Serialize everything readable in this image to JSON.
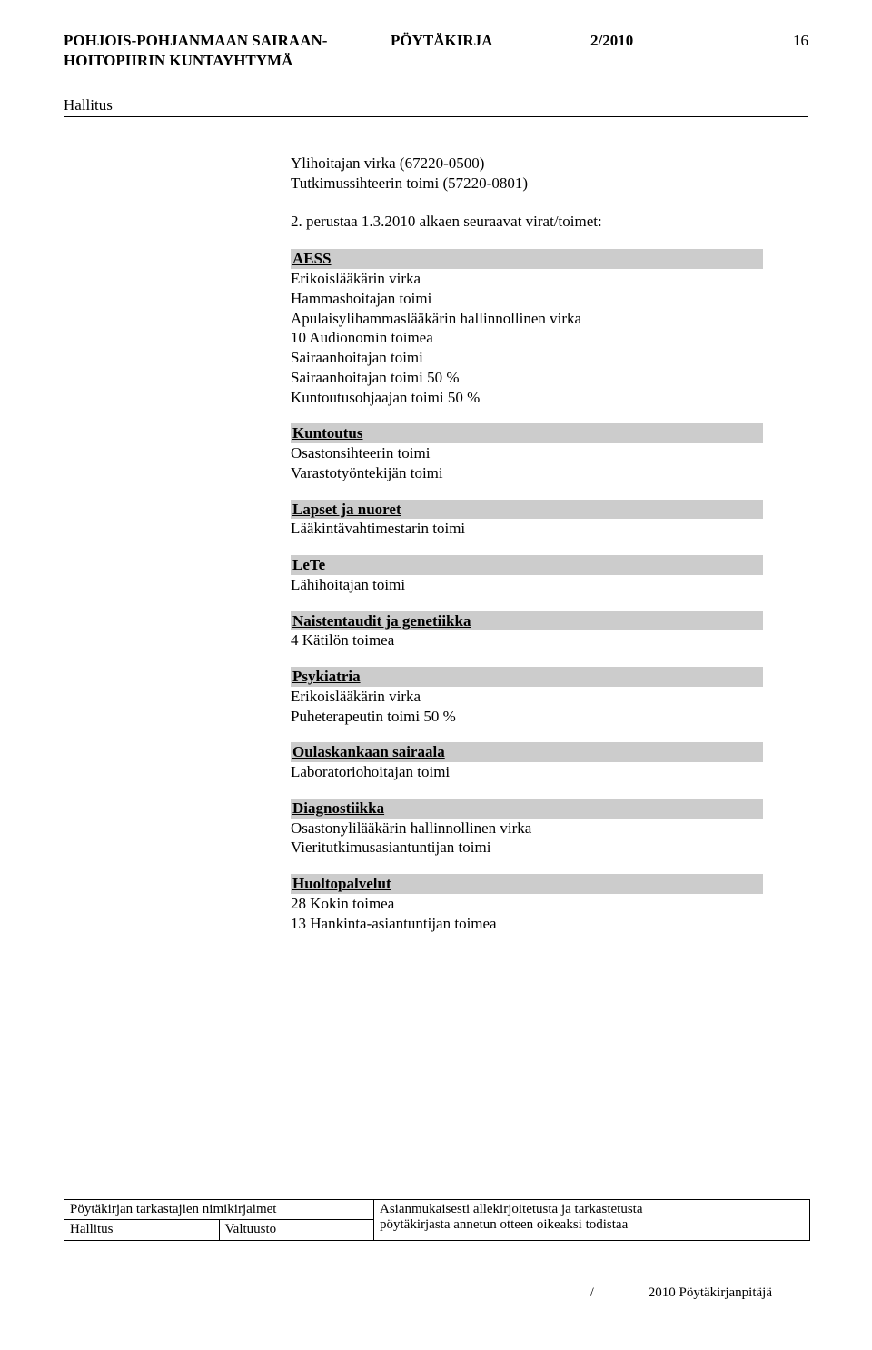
{
  "header": {
    "org_line1": "POHJOIS-POHJANMAAN SAIRAAN-",
    "org_line2": "HOITOPIIRIN KUNTAYHTYMÄ",
    "doc_type": "PÖYTÄKIRJA",
    "doc_number": "2/2010",
    "page_number": "16",
    "board": "Hallitus"
  },
  "intro": {
    "line1": "Ylihoitajan virka (67220-0500)",
    "line2": "Tutkimussihteerin toimi (57220-0801)",
    "perustaa": "2. perustaa 1.3.2010 alkaen seuraavat virat/toimet:"
  },
  "sections": [
    {
      "title": "AESS",
      "items": [
        "Erikoislääkärin virka",
        "Hammashoitajan toimi",
        "Apulaisylihammaslääkärin hallinnollinen virka",
        "10 Audionomin toimea",
        "Sairaanhoitajan toimi",
        "Sairaanhoitajan toimi 50 %",
        "Kuntoutusohjaajan toimi 50 %"
      ]
    },
    {
      "title": "Kuntoutus",
      "items": [
        "Osastonsihteerin toimi",
        "Varastotyöntekijän toimi"
      ]
    },
    {
      "title": "Lapset ja nuoret",
      "items": [
        "Lääkintävahtimestarin toimi"
      ]
    },
    {
      "title": "LeTe",
      "items": [
        "Lähihoitajan toimi"
      ]
    },
    {
      "title": "Naistentaudit ja genetiikka",
      "items": [
        "4 Kätilön toimea"
      ]
    },
    {
      "title": "Psykiatria",
      "items": [
        "Erikoislääkärin virka",
        "Puheterapeutin toimi 50 %"
      ]
    },
    {
      "title": "Oulaskankaan sairaala",
      "items": [
        "Laboratoriohoitajan toimi"
      ]
    },
    {
      "title": "Diagnostiikka",
      "items": [
        "Osastonylilääkärin hallinnollinen virka",
        "Vieritutkimusasiantuntijan toimi"
      ]
    },
    {
      "title": "Huoltopalvelut",
      "items": [
        "28 Kokin toimea",
        "13 Hankinta-asiantuntijan toimea"
      ]
    }
  ],
  "footer": {
    "left_title": "Pöytäkirjan tarkastajien nimikirjaimet",
    "cell1": "Hallitus",
    "cell2": "Valtuusto",
    "right_line1": "Asianmukaisesti allekirjoitetusta ja tarkastetusta",
    "right_line2": "pöytäkirjasta annetun otteen oikeaksi todistaa"
  },
  "footnote": {
    "slash": "/",
    "text": "2010  Pöytäkirjanpitäjä"
  },
  "style": {
    "section_bg": "#cccccc",
    "text_color": "#000000",
    "font_family": "Times New Roman"
  }
}
